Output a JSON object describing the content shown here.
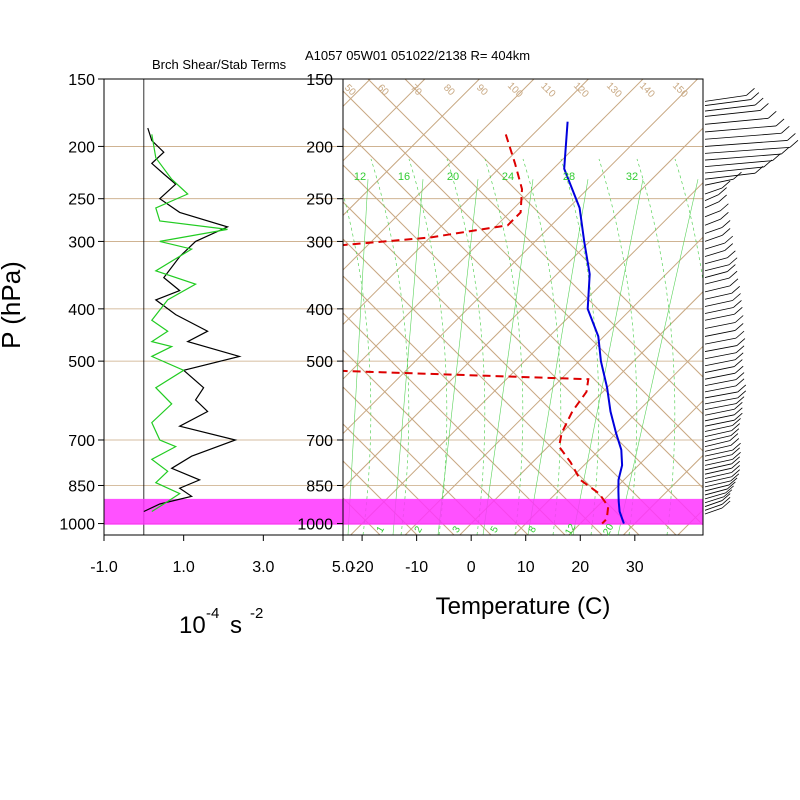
{
  "header": {
    "left_title": "Brch Shear/Stab Terms",
    "right_title": "A1057 05W01 051022/2138 R= 404km"
  },
  "colors": {
    "isotherm": "#c8a882",
    "dry_adiabat": "#c8a882",
    "moist_adiabat": "#5ad25a",
    "mixing_ratio": "#5ad25a",
    "temperature": "#0000dd",
    "dewpoint": "#dd0000",
    "highlight": "#ff33ff",
    "shear_line": "#000000",
    "stability_line": "#22cc22",
    "wind_barb": "#000000"
  },
  "chart_data": [
    {
      "type": "line",
      "title": "Brch Shear/Stab Terms",
      "xlabel_base": "10",
      "xlabel_exp": "-4",
      "xlabel_unit": "s",
      "xlabel_unit_exp": "-2",
      "ylabel": "P (hPa)",
      "xlim": [
        -1.0,
        5.0
      ],
      "x_tick_labels": [
        "-1.0",
        "1.0",
        "3.0",
        "5.0"
      ],
      "x_tick_values": [
        -1.0,
        1.0,
        3.0,
        5.0
      ],
      "y_tick_labels": [
        "150",
        "200",
        "250",
        "300",
        "400",
        "500",
        "700",
        "850",
        "1000"
      ],
      "y_tick_values": [
        150,
        200,
        250,
        300,
        400,
        500,
        700,
        850,
        1000
      ],
      "ylim": [
        150,
        1050
      ],
      "y_scale": "log",
      "series": [
        {
          "key": "black",
          "points": [
            [
              0.1,
              185
            ],
            [
              0.2,
              195
            ],
            [
              0.5,
              205
            ],
            [
              0.2,
              215
            ],
            [
              0.5,
              225
            ],
            [
              0.8,
              235
            ],
            [
              0.4,
              250
            ],
            [
              0.9,
              265
            ],
            [
              2.1,
              282
            ],
            [
              1.3,
              300
            ],
            [
              0.9,
              320
            ],
            [
              0.5,
              350
            ],
            [
              0.9,
              370
            ],
            [
              0.3,
              385
            ],
            [
              0.8,
              410
            ],
            [
              1.6,
              440
            ],
            [
              1.1,
              460
            ],
            [
              2.4,
              490
            ],
            [
              1.0,
              520
            ],
            [
              1.5,
              560
            ],
            [
              1.3,
              590
            ],
            [
              1.6,
              620
            ],
            [
              0.9,
              660
            ],
            [
              2.3,
              700
            ],
            [
              1.2,
              750
            ],
            [
              0.7,
              790
            ],
            [
              1.4,
              830
            ],
            [
              0.9,
              860
            ],
            [
              1.2,
              890
            ],
            [
              0.4,
              920
            ],
            [
              0.0,
              950
            ]
          ]
        },
        {
          "key": "green",
          "points": [
            [
              0.2,
              190
            ],
            [
              0.3,
              210
            ],
            [
              0.7,
              230
            ],
            [
              1.1,
              245
            ],
            [
              0.3,
              260
            ],
            [
              0.4,
              275
            ],
            [
              2.1,
              285
            ],
            [
              0.4,
              300
            ],
            [
              1.2,
              310
            ],
            [
              0.3,
              340
            ],
            [
              1.3,
              360
            ],
            [
              0.6,
              385
            ],
            [
              0.2,
              420
            ],
            [
              0.6,
              440
            ],
            [
              0.2,
              460
            ],
            [
              0.7,
              470
            ],
            [
              0.2,
              490
            ],
            [
              1.0,
              520
            ],
            [
              0.3,
              560
            ],
            [
              0.7,
              600
            ],
            [
              0.2,
              650
            ],
            [
              0.4,
              700
            ],
            [
              0.8,
              720
            ],
            [
              0.2,
              760
            ],
            [
              0.6,
              800
            ],
            [
              0.3,
              840
            ],
            [
              0.9,
              880
            ],
            [
              0.5,
              920
            ],
            [
              0.2,
              950
            ]
          ]
        }
      ]
    },
    {
      "type": "line",
      "title": "A1057 05W01 051022/2138 R= 404km",
      "xlabel": "Temperature (C)",
      "ylabel": "P (hPa)",
      "skew_t": true,
      "x_tick_labels": [
        "-20",
        "-10",
        "0",
        "10",
        "20",
        "30"
      ],
      "x_tick_values": [
        -20,
        -10,
        0,
        10,
        20,
        30
      ],
      "xlim_at_1000hPa": [
        -23.5,
        42.5
      ],
      "y_tick_labels": [
        "150",
        "200",
        "250",
        "300",
        "400",
        "500",
        "700",
        "850",
        "1000"
      ],
      "y_tick_values": [
        150,
        200,
        250,
        300,
        400,
        500,
        700,
        850,
        1000
      ],
      "ylim": [
        150,
        1050
      ],
      "y_scale": "log",
      "mixing_ratio_labels": [
        "12",
        "16",
        "20",
        "24",
        "28",
        "32"
      ],
      "dry_adiabat_labels": [
        "50",
        "60",
        "70",
        "80",
        "90",
        "100",
        "110",
        "120",
        "130",
        "140",
        "150"
      ],
      "moist_adiabat_bottom_labels": [
        "1",
        "2",
        "3",
        "5",
        "8",
        "12",
        "20"
      ],
      "highlight_layer_hPa": [
        900,
        1005
      ],
      "series": [
        {
          "name": "Temperature",
          "key": "temperature",
          "points": [
            [
              -56,
              180
            ],
            [
              -48,
              220
            ],
            [
              -38,
              260
            ],
            [
              -31,
              300
            ],
            [
              -24,
              345
            ],
            [
              -18,
              400
            ],
            [
              -11,
              450
            ],
            [
              -6,
              500
            ],
            [
              0,
              560
            ],
            [
              5,
              620
            ],
            [
              10,
              680
            ],
            [
              14,
              730
            ],
            [
              17,
              780
            ],
            [
              19,
              830
            ],
            [
              21,
              870
            ],
            [
              23,
              910
            ],
            [
              25,
              950
            ],
            [
              28,
              1000
            ]
          ]
        },
        {
          "name": "Dewpoint",
          "key": "dewpoint",
          "points": [
            [
              -65,
              190
            ],
            [
              -58,
              215
            ],
            [
              -52,
              240
            ],
            [
              -48,
              265
            ],
            [
              -48,
              280
            ],
            [
              -60,
              295
            ],
            [
              -75,
              305
            ],
            [
              -80,
              330
            ],
            [
              -82,
              360
            ],
            [
              -80,
              400
            ],
            [
              -75,
              440
            ],
            [
              -70,
              470
            ],
            [
              -72,
              490
            ],
            [
              -70,
              505
            ],
            [
              -55,
              520
            ],
            [
              -5,
              540
            ],
            [
              -3,
              570
            ],
            [
              -2,
              620
            ],
            [
              0,
              680
            ],
            [
              2,
              720
            ],
            [
              7,
              770
            ],
            [
              12,
              830
            ],
            [
              18,
              880
            ],
            [
              22,
              930
            ],
            [
              24,
              980
            ],
            [
              24,
              1000
            ]
          ]
        }
      ]
    },
    {
      "type": "wind_barbs",
      "key": "winds",
      "pressures_hPa": [
        165,
        168,
        172,
        176,
        182,
        188,
        194,
        200,
        206,
        212,
        218,
        224,
        230,
        236,
        245,
        252,
        260,
        270,
        280,
        290,
        300,
        310,
        320,
        330,
        340,
        350,
        360,
        372,
        384,
        396,
        408,
        420,
        435,
        450,
        465,
        480,
        495,
        510,
        525,
        540,
        555,
        570,
        585,
        600,
        615,
        630,
        645,
        660,
        675,
        690,
        705,
        720,
        735,
        750,
        765,
        780,
        795,
        810,
        825,
        840,
        855,
        870,
        885,
        900,
        915,
        930,
        945,
        960
      ],
      "shaft_x_fraction": [
        0.5,
        0.55,
        0.6,
        0.66,
        0.75,
        0.84,
        0.9,
        0.97,
        1.0,
        0.9,
        0.8,
        0.7,
        0.6,
        0.35,
        0.22,
        0.18,
        0.18,
        0.2,
        0.2,
        0.22,
        0.22,
        0.25,
        0.25,
        0.28,
        0.3,
        0.28,
        0.3,
        0.31,
        0.33,
        0.34,
        0.35,
        0.36,
        0.37,
        0.37,
        0.38,
        0.39,
        0.38,
        0.37,
        0.36,
        0.37,
        0.38,
        0.38,
        0.4,
        0.4,
        0.38,
        0.36,
        0.36,
        0.36,
        0.34,
        0.33,
        0.32,
        0.31,
        0.32,
        0.34,
        0.33,
        0.34,
        0.33,
        0.33,
        0.33,
        0.33,
        0.32,
        0.3,
        0.28,
        0.26,
        0.24,
        0.22,
        0.22,
        0.22
      ]
    }
  ]
}
